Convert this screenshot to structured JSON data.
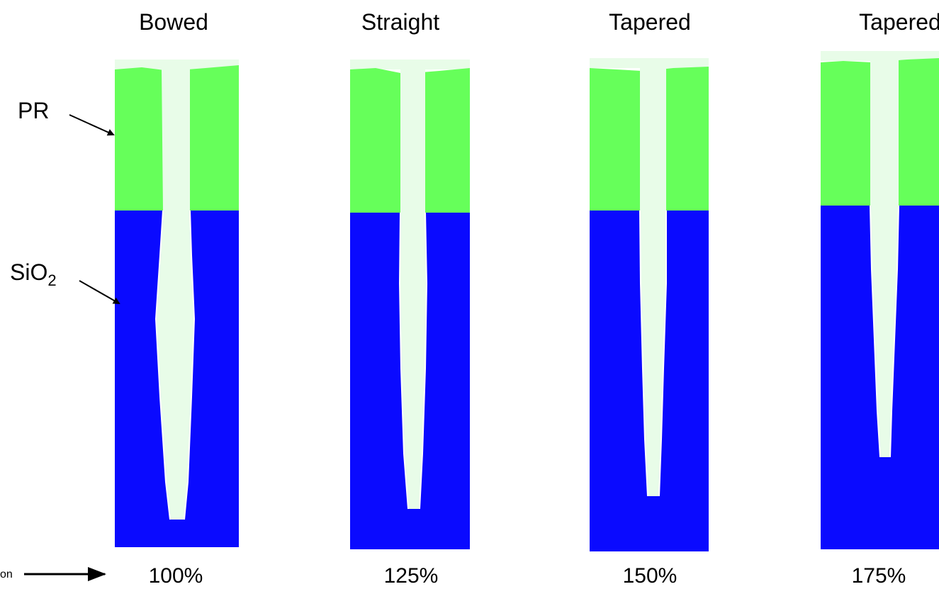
{
  "panels": [
    {
      "title": "Bowed",
      "label": "100%"
    },
    {
      "title": "Straight",
      "label": "125%"
    },
    {
      "title": "Tapered",
      "label": "150%"
    },
    {
      "title": "Tapered",
      "label": "175%"
    }
  ],
  "layers": {
    "pr": "PR",
    "oxide": {
      "main": "SiO",
      "sub": "2"
    }
  },
  "axis_label": "on"
}
